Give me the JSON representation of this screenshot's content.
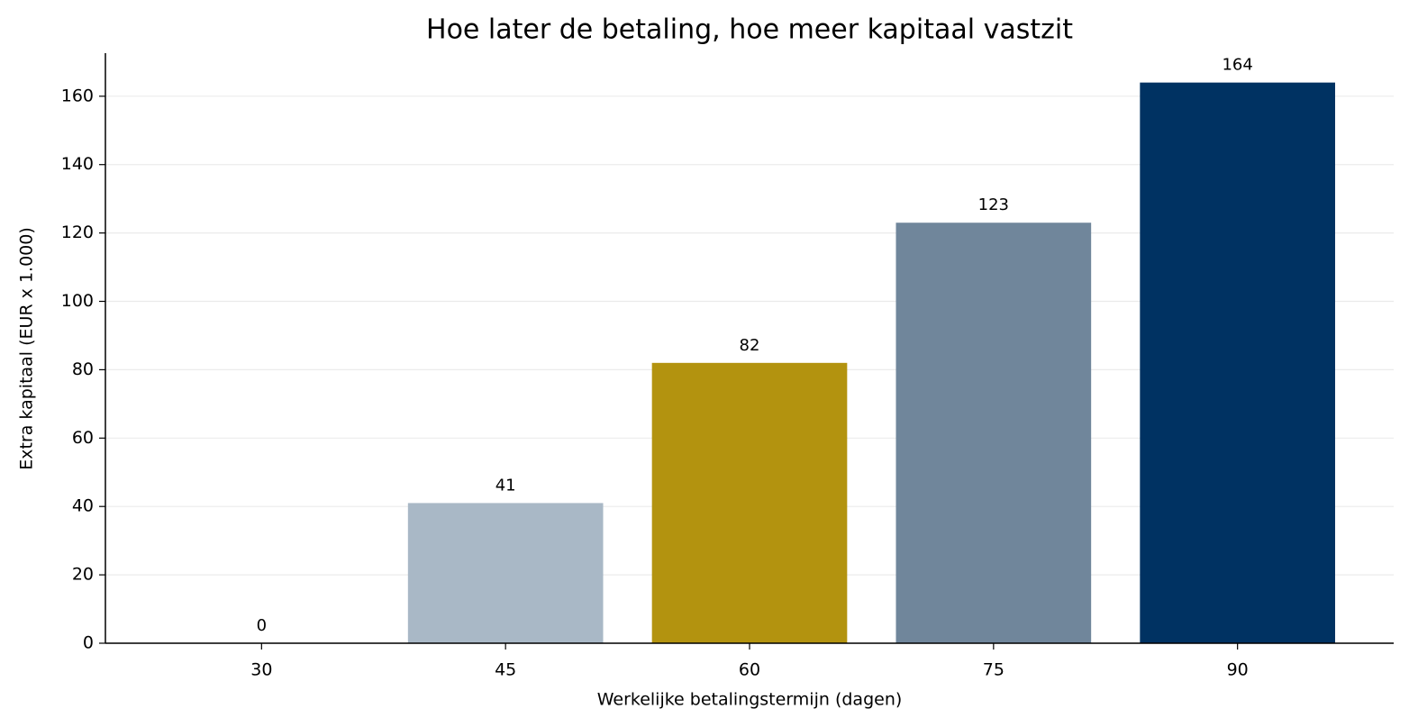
{
  "chart_data": {
    "type": "bar",
    "title": "Hoe later de betaling, hoe meer kapitaal vastzit",
    "x_label": "Werkelijke betalingstermijn (dagen)",
    "y_label": "Extra kapitaal (EUR x 1.000)",
    "categories": [
      "30",
      "45",
      "60",
      "75",
      "90"
    ],
    "values": [
      0,
      41,
      82,
      123,
      164
    ],
    "colors": [
      "#c8d3dd",
      "#a9b8c6",
      "#b3930f",
      "#70869b",
      "#003262"
    ],
    "ylim": [
      0,
      172.6
    ],
    "yticks": [
      0,
      20,
      40,
      60,
      80,
      100,
      120,
      140,
      160
    ],
    "grid": true
  }
}
